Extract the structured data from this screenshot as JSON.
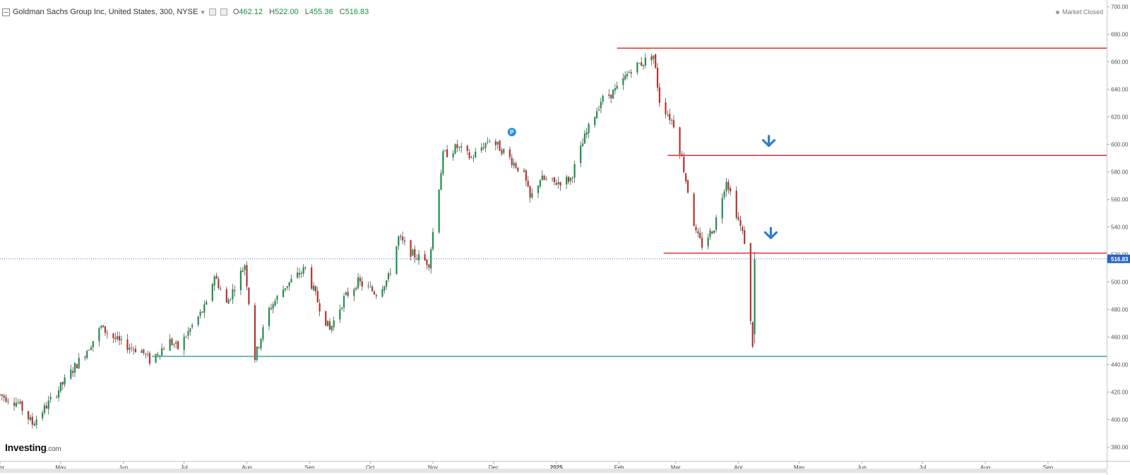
{
  "header": {
    "title": "Goldman Sachs Group Inc, United States, 300, NYSE",
    "dropdown_glyph": "▾",
    "open_label": "O",
    "open": "462.12",
    "high_label": "H",
    "high": "522.00",
    "low_label": "L",
    "low": "455.36",
    "close_label": "C",
    "close": "516.83"
  },
  "market_status": "Market Closed",
  "logo": {
    "main": "Investing",
    "suffix": ".com"
  },
  "colors": {
    "up": "#1f8f4e",
    "down": "#b8322f",
    "resistance": "#e0302e",
    "support": "#3aa89a",
    "last_price": "#2a63c9",
    "arrow": "#2f7fd0",
    "marker": "#2b8fe0"
  },
  "chart_data": {
    "type": "candlestick",
    "title": "Goldman Sachs Group Inc, United States, 300, NYSE",
    "y_axis": {
      "position": "right",
      "range": [
        370,
        705
      ],
      "tick_labels": [
        "380.00",
        "400.00",
        "420.00",
        "440.00",
        "460.00",
        "480.00",
        "500.00",
        "520.00",
        "540.00",
        "560.00",
        "580.00",
        "600.00",
        "620.00",
        "640.00",
        "660.00",
        "680.00",
        "700.00"
      ]
    },
    "x_axis": {
      "range": [
        "2024-04-01",
        "2025-09-30"
      ],
      "tick_labels": [
        {
          "label": "Apr",
          "date": "2024-04-01"
        },
        {
          "label": "May",
          "date": "2024-05-01"
        },
        {
          "label": "Jun",
          "date": "2024-06-01"
        },
        {
          "label": "Jul",
          "date": "2024-07-01"
        },
        {
          "label": "Aug",
          "date": "2024-08-01"
        },
        {
          "label": "Sep",
          "date": "2024-09-01"
        },
        {
          "label": "Oct",
          "date": "2024-10-01"
        },
        {
          "label": "Nov",
          "date": "2024-11-01"
        },
        {
          "label": "Dec",
          "date": "2024-12-01"
        },
        {
          "label": "2025",
          "date": "2025-01-01"
        },
        {
          "label": "Feb",
          "date": "2025-02-01"
        },
        {
          "label": "Mar",
          "date": "2025-03-01"
        },
        {
          "label": "Apr",
          "date": "2025-04-01"
        },
        {
          "label": "May",
          "date": "2025-05-01"
        },
        {
          "label": "Jun",
          "date": "2025-06-01"
        },
        {
          "label": "Jul",
          "date": "2025-07-01"
        },
        {
          "label": "Aug",
          "date": "2025-08-01"
        },
        {
          "label": "Sep",
          "date": "2025-09-01"
        }
      ]
    },
    "price_path": [
      [
        "2024-04-01",
        418
      ],
      [
        "2024-04-10",
        412
      ],
      [
        "2024-04-17",
        397
      ],
      [
        "2024-04-24",
        410
      ],
      [
        "2024-05-03",
        428
      ],
      [
        "2024-05-15",
        453
      ],
      [
        "2024-05-21",
        467
      ],
      [
        "2024-05-31",
        455
      ],
      [
        "2024-06-10",
        450
      ],
      [
        "2024-06-14",
        443
      ],
      [
        "2024-06-24",
        457
      ],
      [
        "2024-06-28",
        452
      ],
      [
        "2024-07-05",
        468
      ],
      [
        "2024-07-12",
        483
      ],
      [
        "2024-07-16",
        505
      ],
      [
        "2024-07-22",
        484
      ],
      [
        "2024-07-31",
        513
      ],
      [
        "2024-08-05",
        445
      ],
      [
        "2024-08-12",
        480
      ],
      [
        "2024-08-20",
        497
      ],
      [
        "2024-08-30",
        510
      ],
      [
        "2024-09-06",
        482
      ],
      [
        "2024-09-11",
        465
      ],
      [
        "2024-09-18",
        488
      ],
      [
        "2024-09-25",
        500
      ],
      [
        "2024-10-04",
        492
      ],
      [
        "2024-10-10",
        503
      ],
      [
        "2024-10-15",
        532
      ],
      [
        "2024-10-22",
        520
      ],
      [
        "2024-10-30",
        514
      ],
      [
        "2024-11-06",
        592
      ],
      [
        "2024-11-13",
        598
      ],
      [
        "2024-11-20",
        590
      ],
      [
        "2024-11-29",
        604
      ],
      [
        "2024-12-06",
        595
      ],
      [
        "2024-12-16",
        578
      ],
      [
        "2024-12-19",
        560
      ],
      [
        "2024-12-24",
        575
      ],
      [
        "2024-12-31",
        572
      ],
      [
        "2025-01-08",
        575
      ],
      [
        "2025-01-15",
        605
      ],
      [
        "2025-01-23",
        632
      ],
      [
        "2025-01-31",
        640
      ],
      [
        "2025-02-07",
        655
      ],
      [
        "2025-02-13",
        660
      ],
      [
        "2025-02-18",
        665
      ],
      [
        "2025-02-21",
        632
      ],
      [
        "2025-02-28",
        615
      ],
      [
        "2025-03-04",
        590
      ],
      [
        "2025-03-11",
        535
      ],
      [
        "2025-03-14",
        527
      ],
      [
        "2025-03-20",
        540
      ],
      [
        "2025-03-26",
        575
      ],
      [
        "2025-03-31",
        550
      ],
      [
        "2025-04-04",
        530
      ],
      [
        "2025-04-07",
        470
      ],
      [
        "2025-04-08",
        455
      ],
      [
        "2025-04-09",
        516.83
      ]
    ],
    "last_bar": {
      "open": 462.12,
      "high": 522.0,
      "low": 455.36,
      "close": 516.83
    },
    "annotations": {
      "last_price": {
        "value": 516.83,
        "label": "516.83"
      },
      "resistance_lines": [
        {
          "value": 670,
          "from": "2025-01-31",
          "to": "2025-09-30"
        },
        {
          "value": 592,
          "from": "2025-02-25",
          "to": "2025-09-30"
        },
        {
          "value": 521,
          "from": "2025-02-23",
          "to": "2025-09-30"
        }
      ],
      "support_lines": [
        {
          "value": 446,
          "from": "2024-06-15",
          "to": "2025-09-30"
        }
      ],
      "arrows": [
        {
          "date": "2025-04-16",
          "value": 600,
          "direction": "down"
        },
        {
          "date": "2025-04-17",
          "value": 533,
          "direction": "down"
        }
      ],
      "event_marker": {
        "date": "2024-12-10",
        "value": 609,
        "label": "P"
      }
    },
    "grid": false,
    "legend": "none"
  }
}
